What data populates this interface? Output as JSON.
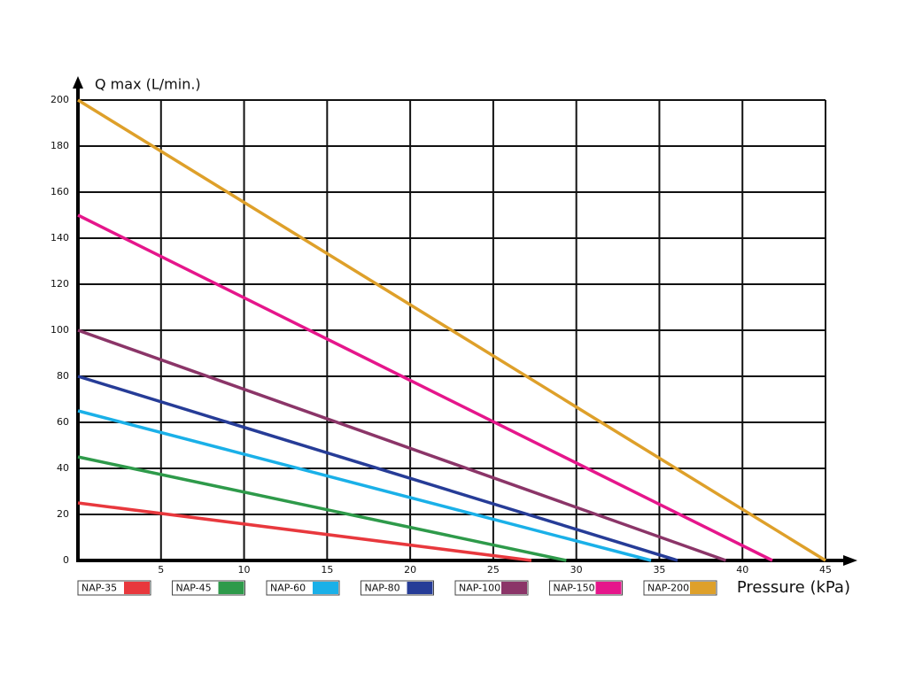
{
  "chart_data": {
    "type": "line",
    "x_label": "Pressure (kPa)",
    "y_label": "Q max (L/min.)",
    "xlim": [
      0,
      45
    ],
    "ylim": [
      0,
      200
    ],
    "xticks": [
      5,
      10,
      15,
      20,
      25,
      30,
      35,
      40,
      45
    ],
    "yticks": [
      0,
      20,
      40,
      60,
      80,
      100,
      120,
      140,
      160,
      180,
      200
    ],
    "grid": true,
    "series": [
      {
        "name": "NAP-35",
        "color": "#e8383d",
        "x": [
          0,
          27.3
        ],
        "values": [
          25,
          0
        ]
      },
      {
        "name": "NAP-45",
        "color": "#2e9a4a",
        "x": [
          0,
          29.4
        ],
        "values": [
          45,
          0
        ]
      },
      {
        "name": "NAP-60",
        "color": "#1ab0e8",
        "x": [
          0,
          34.5
        ],
        "values": [
          65,
          0
        ]
      },
      {
        "name": "NAP-80",
        "color": "#263c97",
        "x": [
          0,
          36.1
        ],
        "values": [
          80,
          0
        ]
      },
      {
        "name": "NAP-100",
        "color": "#8b3568",
        "x": [
          0,
          39
        ],
        "values": [
          100,
          0
        ]
      },
      {
        "name": "NAP-150",
        "color": "#e5168b",
        "x": [
          0,
          41.8
        ],
        "values": [
          150,
          0
        ]
      },
      {
        "name": "NAP-200",
        "color": "#dea02a",
        "x": [
          0,
          45
        ],
        "values": [
          200,
          0
        ]
      }
    ]
  }
}
